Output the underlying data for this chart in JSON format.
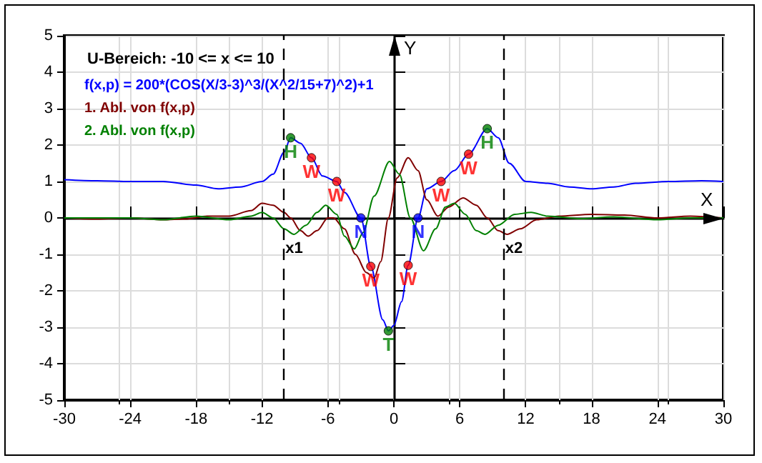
{
  "chart_data": {
    "type": "line",
    "title": "U-Bereich: -10 <= x <= 10",
    "xlabel": "X",
    "ylabel": "Y",
    "xlim": [
      -30,
      30
    ],
    "xticks": [
      -30,
      -24,
      -18,
      -12,
      -6,
      0,
      6,
      12,
      18,
      24,
      30
    ],
    "ylim": [
      -5,
      5
    ],
    "yticks": [
      -5,
      -4,
      -3,
      -2,
      -1,
      0,
      1,
      2,
      3,
      4,
      5
    ],
    "grid": true,
    "legend": "top left",
    "marker": "none",
    "line_style": "solid",
    "series": [
      {
        "name": "f(x,p) = 200*(COS(X/3-3)^3/(X^2/15+7)^2)+1",
        "color": "#0000ff",
        "x": [
          -30,
          -27,
          -24,
          -21,
          -18,
          -16,
          -14,
          -12,
          -11,
          -10,
          -9.4,
          -8.5,
          -7.5,
          -6.5,
          -5.2,
          -4.5,
          -3,
          -2.1,
          -1,
          -0.5,
          0,
          0.7,
          1.3,
          2.2,
          3,
          4.3,
          5.5,
          6.8,
          8.5,
          9.5,
          10.5,
          12,
          14,
          16,
          18,
          20,
          22,
          25,
          28,
          30
        ],
        "values": [
          1.05,
          1.02,
          1,
          1,
          0.9,
          0.8,
          0.85,
          1,
          1.2,
          1.8,
          2.2,
          2.05,
          1.65,
          1.15,
          1,
          0.7,
          0,
          -1.33,
          -2.8,
          -3.1,
          -2.95,
          -2.3,
          -1.3,
          0,
          0.8,
          1,
          1.3,
          1.75,
          2.45,
          2.2,
          1.5,
          1,
          0.95,
          0.85,
          0.8,
          0.85,
          0.95,
          1,
          1.02,
          1
        ]
      },
      {
        "name": "1. Abl. von f(x,p)",
        "color": "#800000",
        "x": [
          -30,
          -27,
          -24,
          -21,
          -19,
          -17,
          -15,
          -13,
          -12,
          -11,
          -10,
          -9.4,
          -8.5,
          -7.8,
          -7,
          -6,
          -5.5,
          -4.5,
          -3.5,
          -2.5,
          -1.8,
          -1.2,
          -0.5,
          0.3,
          1.3,
          2.2,
          3,
          4,
          5,
          6.3,
          7.5,
          8.5,
          9.5,
          10.3,
          11.5,
          13,
          15,
          18,
          21,
          24,
          27,
          30
        ],
        "values": [
          0,
          -0.03,
          0,
          -0.05,
          -0.03,
          0.05,
          0.05,
          0.2,
          0.4,
          0.35,
          0.15,
          0,
          -0.35,
          -0.5,
          -0.35,
          0,
          0,
          -0.3,
          -1,
          -1.5,
          -1.65,
          -1.2,
          0,
          1.1,
          1.65,
          1.3,
          0.5,
          0.05,
          0.3,
          0.55,
          0.35,
          0,
          -0.35,
          -0.45,
          -0.3,
          -0.05,
          0.05,
          0.1,
          0.08,
          0,
          0.05,
          0
        ]
      },
      {
        "name": "2. Abl. von f(x,p)",
        "color": "#008000",
        "x": [
          -30,
          -24,
          -21,
          -18,
          -15,
          -13,
          -12,
          -11,
          -10,
          -9.1,
          -8,
          -7,
          -6.2,
          -5.2,
          -4.5,
          -3.6,
          -2.8,
          -1.8,
          -0.4,
          0.5,
          1.5,
          2.7,
          3.8,
          4.7,
          5.5,
          6.5,
          7.5,
          8.3,
          9.5,
          11,
          12.5,
          14,
          17,
          20,
          24,
          27,
          30
        ],
        "values": [
          0,
          0,
          -0.05,
          0.05,
          -0.05,
          0.05,
          0.15,
          0,
          -0.3,
          -0.45,
          -0.2,
          0.15,
          0.35,
          0.1,
          -0.5,
          -0.85,
          -0.4,
          0.6,
          1.55,
          1.2,
          0,
          -0.9,
          -0.3,
          0.3,
          0.4,
          0.1,
          -0.35,
          -0.45,
          -0.2,
          0.1,
          0.15,
          0.05,
          -0.02,
          0.03,
          -0.05,
          0,
          0
        ]
      },
      {
        "type": "scatter",
        "marker": "circle",
        "x": [
          -9.4,
          -7.5,
          -5.2,
          -3,
          -2.1,
          -0.5,
          1.3,
          2.2,
          4.3,
          6.8,
          8.5
        ],
        "values": [
          2.2,
          1.65,
          1,
          0,
          -1.33,
          -3.1,
          -1.3,
          0,
          1,
          1.75,
          2.45
        ],
        "colors": [
          "#008000",
          "#ff0000",
          "#ff0000",
          "#0000ff",
          "#ff0000",
          "#008000",
          "#ff0000",
          "#0000ff",
          "#ff0000",
          "#ff0000",
          "#008000"
        ]
      }
    ],
    "ref_lines": [
      {
        "axis": "x",
        "value": -10,
        "label": "x1",
        "line_style": "dashed",
        "color": "#000000"
      },
      {
        "axis": "x",
        "value": 10,
        "label": "x2",
        "line_style": "dashed",
        "color": "#000000"
      }
    ],
    "annotations": [
      {
        "text": "H",
        "x": -9.4,
        "y": 2.2
      },
      {
        "text": "W",
        "x": -7.5,
        "y": 1.65
      },
      {
        "text": "W",
        "x": -5.2,
        "y": 1
      },
      {
        "text": "N",
        "x": -3,
        "y": 0
      },
      {
        "text": "W",
        "x": -2.1,
        "y": -1.33
      },
      {
        "text": "T",
        "x": -0.5,
        "y": -3.1
      },
      {
        "text": "W",
        "x": 1.3,
        "y": -1.3
      },
      {
        "text": "N",
        "x": 2.2,
        "y": 0
      },
      {
        "text": "W",
        "x": 4.3,
        "y": 1
      },
      {
        "text": "W",
        "x": 6.8,
        "y": 1.75
      },
      {
        "text": "H",
        "x": 8.5,
        "y": 2.45
      }
    ]
  }
}
